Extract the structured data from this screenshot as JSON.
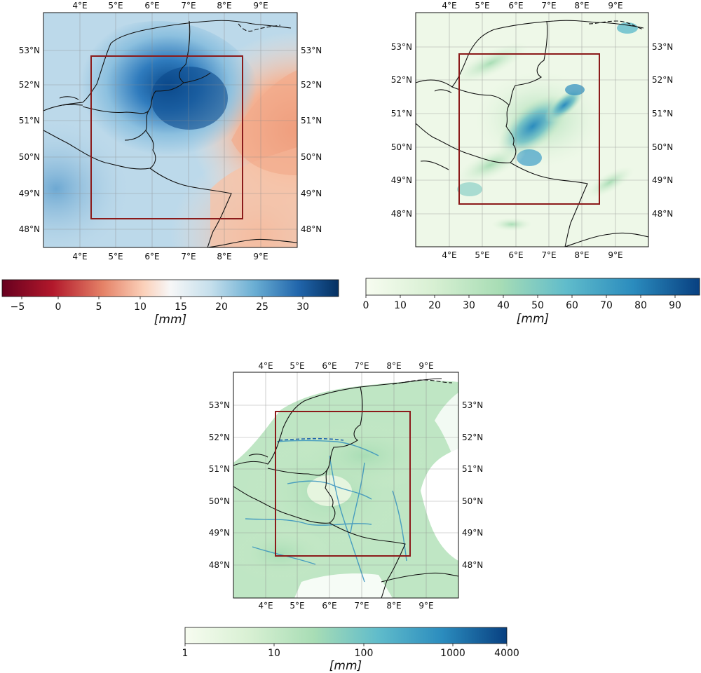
{
  "maps": [
    {
      "name": "map-1",
      "lon_ticks": [
        "4°E",
        "5°E",
        "6°E",
        "7°E",
        "8°E",
        "9°E"
      ],
      "lat_ticks": [
        "53°N",
        "52°N",
        "51°N",
        "50°N",
        "49°N",
        "48°N"
      ],
      "colormap": "RdBu",
      "colorbar": {
        "ticks": [
          "−5",
          "0",
          "5",
          "10",
          "15",
          "20",
          "25",
          "30"
        ],
        "label": "[mm]",
        "range": [
          -7,
          35
        ]
      }
    },
    {
      "name": "map-2",
      "lon_ticks": [
        "4°E",
        "5°E",
        "6°E",
        "7°E",
        "8°E",
        "9°E"
      ],
      "lat_ticks": [
        "53°N",
        "52°N",
        "51°N",
        "50°N",
        "49°N",
        "48°N"
      ],
      "colormap": "GnBu",
      "colorbar": {
        "ticks": [
          "0",
          "10",
          "20",
          "30",
          "40",
          "50",
          "60",
          "70",
          "80",
          "90"
        ],
        "label": "[mm]",
        "range": [
          0,
          97
        ]
      }
    },
    {
      "name": "map-3",
      "lon_ticks": [
        "4°E",
        "5°E",
        "6°E",
        "7°E",
        "8°E",
        "9°E"
      ],
      "lat_ticks": [
        "53°N",
        "52°N",
        "51°N",
        "50°N",
        "49°N",
        "48°N"
      ],
      "colormap": "GnBu",
      "colorbar": {
        "ticks": [
          "1",
          "10",
          "100",
          "1000",
          "4000"
        ],
        "label": "[mm]",
        "scale": "log",
        "range": [
          1,
          4000
        ]
      }
    }
  ],
  "colors": {
    "domain_box": "#8b1a1a",
    "border_lines": "#111111",
    "grid": "#8a8a8a"
  }
}
